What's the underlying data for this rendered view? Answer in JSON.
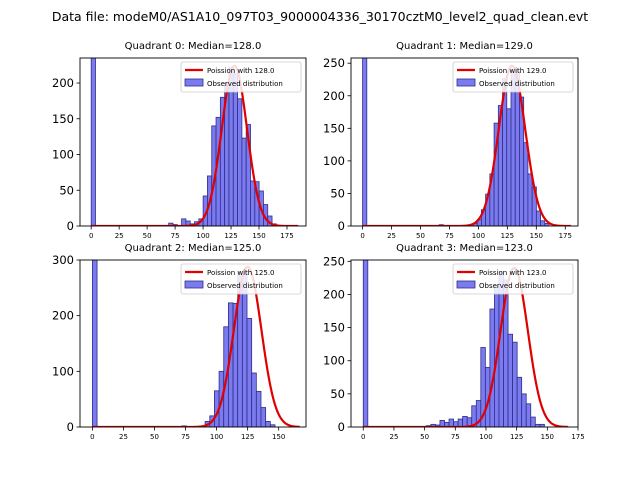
{
  "title": "Data file: modeM0/AS1A10_097T03_9000004336_30170cztM0_level2_quad_clean.evt",
  "colors": {
    "bar": "#7b7bef",
    "bar_edge": "#2e2e8c",
    "curve": "#e00000"
  },
  "chart_data": [
    {
      "type": "bar",
      "title": "Quadrant 0: Median=128.0",
      "legend": [
        "Poission with 128.0",
        "Observed distribution"
      ],
      "legend_position": "top-right",
      "xlim": [
        -10,
        192
      ],
      "ylim": [
        0,
        235
      ],
      "xticks": [
        0,
        25,
        50,
        75,
        100,
        125,
        150,
        175
      ],
      "yticks": [
        0,
        50,
        100,
        150,
        200
      ],
      "bin_width": 3.85,
      "zero_bar": 240,
      "bin_start": 65.4,
      "values": [
        0,
        4,
        2,
        0,
        10,
        7,
        3,
        6,
        10,
        42,
        70,
        140,
        152,
        180,
        200,
        222,
        213,
        178,
        123,
        142,
        63,
        62,
        49,
        30,
        14,
        3
      ],
      "poisson_mean": 128.0,
      "poisson_peak": 224,
      "poisson_sigma": 11.3,
      "curve_range": [
        0,
        185
      ]
    },
    {
      "type": "bar",
      "title": "Quadrant 1: Median=129.0",
      "legend": [
        "Poission with 129.0",
        "Observed distribution"
      ],
      "legend_position": "top-right",
      "xlim": [
        -10,
        186
      ],
      "ylim": [
        0,
        258
      ],
      "xticks": [
        0,
        25,
        50,
        75,
        100,
        125,
        150,
        175
      ],
      "yticks": [
        0,
        50,
        100,
        150,
        200,
        250
      ],
      "bin_width": 3.65,
      "zero_bar": 260,
      "bin_start": 66.1,
      "values": [
        2,
        0,
        0,
        0,
        0,
        0,
        0,
        0,
        4,
        10,
        25,
        49,
        80,
        158,
        185,
        226,
        180,
        238,
        238,
        198,
        128,
        80,
        60,
        23,
        8,
        4
      ],
      "poisson_mean": 129.0,
      "poisson_peak": 246,
      "poisson_sigma": 11.4,
      "curve_range": [
        0,
        180
      ]
    },
    {
      "type": "bar",
      "title": "Quadrant 2: Median=125.0",
      "legend": [
        "Poission with 125.0",
        "Observed distribution"
      ],
      "legend_position": "top-right",
      "xlim": [
        -10,
        172
      ],
      "ylim": [
        0,
        300
      ],
      "xticks": [
        0,
        25,
        50,
        75,
        100,
        125,
        150
      ],
      "yticks": [
        0,
        100,
        200,
        300
      ],
      "bin_width": 3.75,
      "zero_bar": 305,
      "bin_start": 72,
      "values": [
        2,
        0,
        0,
        0,
        0,
        10,
        20,
        65,
        100,
        180,
        223,
        222,
        278,
        280,
        195,
        97,
        64,
        35,
        10,
        4
      ],
      "poisson_mean": 125.0,
      "poisson_peak": 288,
      "poisson_sigma": 11.1,
      "curve_range": [
        0,
        167
      ]
    },
    {
      "type": "bar",
      "title": "Quadrant 3: Median=123.0",
      "legend": [
        "Poission with 123.0",
        "Observed distribution"
      ],
      "legend_position": "top-right",
      "xlim": [
        -10,
        175
      ],
      "ylim": [
        0,
        252
      ],
      "xticks": [
        0,
        25,
        50,
        75,
        100,
        125,
        150,
        175
      ],
      "yticks": [
        0,
        50,
        100,
        150,
        200,
        250
      ],
      "bin_width": 3.7,
      "zero_bar": 260,
      "bin_start": 51.4,
      "values": [
        2,
        4,
        3,
        10,
        7,
        12,
        8,
        12,
        16,
        14,
        32,
        40,
        120,
        90,
        178,
        212,
        235,
        222,
        140,
        128,
        75,
        50,
        35,
        15,
        4,
        4
      ],
      "poisson_mean": 123.0,
      "poisson_peak": 240,
      "poisson_sigma": 11.1,
      "curve_range": [
        0,
        167
      ]
    }
  ]
}
